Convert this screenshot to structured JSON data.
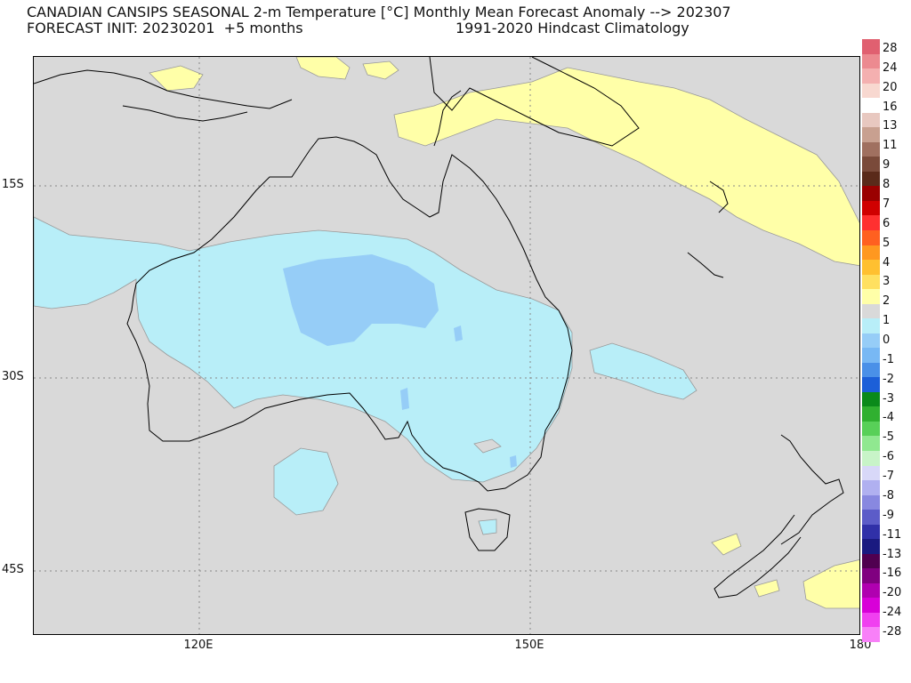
{
  "title": {
    "line1": "CANADIAN CANSIPS SEASONAL 2-m Temperature [°C] Monthly Mean Forecast Anomaly --> 202307",
    "line2_left": "FORECAST INIT: 20230201  +5 months",
    "line2_right": "1991-2020 Hindcast Climatology"
  },
  "axes": {
    "lat_labels": [
      "15S",
      "30S",
      "45S"
    ],
    "lon_labels": [
      "120E",
      "150E",
      "180"
    ]
  },
  "colors": {
    "background_neutral": "#d9d9d9",
    "anomaly_pos_1": "#ffffa8",
    "anomaly_neg_1": "#b8eef8",
    "anomaly_neg_2": "#96cdf7",
    "coastline": "#000000"
  },
  "colorbar": {
    "labels": [
      "28",
      "24",
      "20",
      "16",
      "13",
      "11",
      "9",
      "8",
      "7",
      "6",
      "5",
      "4",
      "3",
      "2",
      "1",
      "0",
      "-1",
      "-2",
      "-3",
      "-4",
      "-5",
      "-6",
      "-7",
      "-8",
      "-9",
      "-11",
      "-13",
      "-16",
      "-20",
      "-24",
      "-28"
    ],
    "colors": [
      "#e06070",
      "#ec8a90",
      "#f4b0b0",
      "#f8d8d0",
      "#ffffff",
      "#e8c8c0",
      "#c8a090",
      "#a07060",
      "#7a4a3a",
      "#5a2a1a",
      "#9a0000",
      "#d00000",
      "#ff3030",
      "#ff6020",
      "#ff9820",
      "#ffc030",
      "#ffe060",
      "#ffffa8",
      "#d9d9d9",
      "#b8eef8",
      "#96cdf7",
      "#78b8f4",
      "#4a90e8",
      "#1c5fd8",
      "#0a8a1a",
      "#30b030",
      "#58d058",
      "#90e890",
      "#c8f4c8",
      "#d8d8f8",
      "#b0b0f0",
      "#8888e0",
      "#5c5cc8",
      "#3030a8",
      "#1a1a80",
      "#500050",
      "#800080",
      "#b000b0",
      "#d800d8",
      "#f040f0",
      "#f880f8"
    ]
  }
}
